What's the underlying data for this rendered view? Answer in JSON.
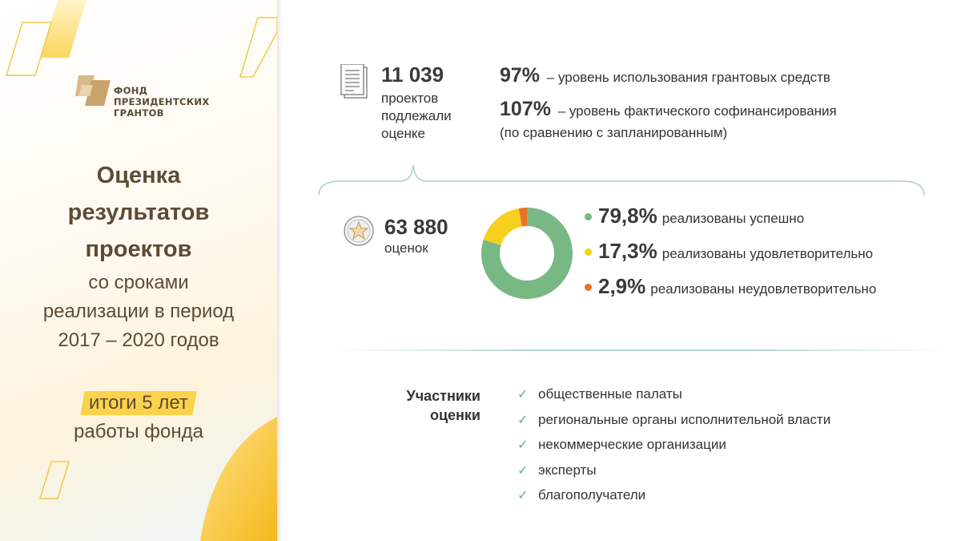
{
  "logo": {
    "line1": "ФОНД",
    "line2": "ПРЕЗИДЕНТСКИХ",
    "line3": "ГРАНТОВ"
  },
  "title": {
    "line1": "Оценка",
    "line2": "результатов",
    "line3": "проектов",
    "sub1": "со сроками",
    "sub2": "реализации в период",
    "sub3": "2017 – 2020 годов"
  },
  "results": {
    "highlight": "итоги 5 лет",
    "line2": "работы фонда"
  },
  "stats": {
    "projects_value": "11 039",
    "projects_cap1": "проектов",
    "projects_cap2": "подлежали",
    "projects_cap3": "оценке",
    "grant_use_value": "97%",
    "grant_use_text": "– уровень использования грантовых средств",
    "cofinance_value": "107%",
    "cofinance_text": "– уровень фактического софинансирования",
    "cofinance_note": "(по сравнению с запланированным)",
    "ratings_value": "63 880",
    "ratings_cap": "оценок"
  },
  "chart_data": {
    "type": "pie",
    "categories": [
      "реализованы успешно",
      "реализованы удовлетворительно",
      "реализованы неудовлетворительно"
    ],
    "values": [
      79.8,
      17.3,
      2.9
    ],
    "labels": [
      "79,8%",
      "17,3%",
      "2,9%"
    ],
    "colors": [
      "#78b884",
      "#f7cf1f",
      "#ec7325"
    ],
    "title": "",
    "legend": "right"
  },
  "participants": {
    "title_line1": "Участники",
    "title_line2": "оценки",
    "items": [
      "общественные палаты",
      "региональные органы исполнительной власти",
      "некоммерческие организации",
      "эксперты",
      "благополучатели"
    ]
  }
}
